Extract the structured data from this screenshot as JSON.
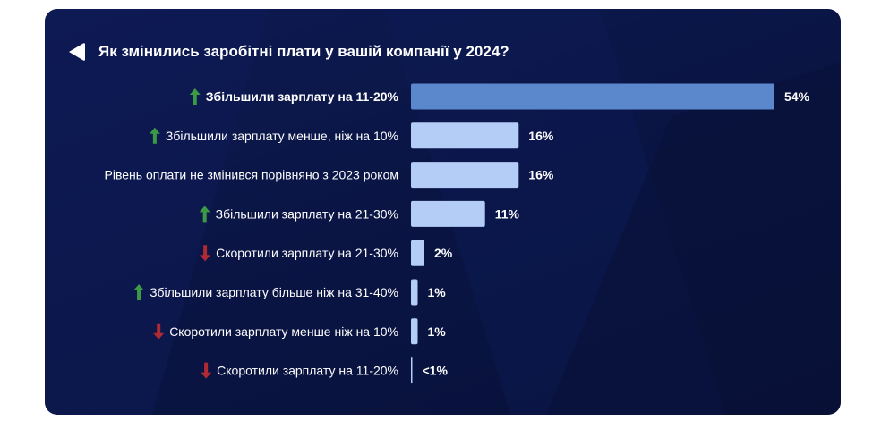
{
  "title": "Як змінились заробітні плати у вашій компанії у 2024?",
  "colors": {
    "card_bg": "#0b1648",
    "bar_highlight": "#5b87cc",
    "bar": "#b4cdf6",
    "arrow_up": "#3c9a45",
    "arrow_down": "#b02a33",
    "text": "#ffffff"
  },
  "chart_data": {
    "type": "bar",
    "orientation": "horizontal",
    "title": "Як змінились заробітні плати у вашій компанії у 2024?",
    "categories": [
      "Збільшили зарплату на 11-20%",
      "Збільшили зарплату менше, ніж на 10%",
      "Рівень оплати не змінився порівняно з 2023 роком",
      "Збільшили зарплату на 21-30%",
      "Скоротили зарплату на 21-30%",
      "Збільшили зарплату більше ніж на 31-40%",
      "Скоротили зарплату менше ніж на 10%",
      "Скоротили зарплату на 11-20%"
    ],
    "values": [
      54,
      16,
      16,
      11,
      2,
      1,
      1,
      0.2
    ],
    "value_labels": [
      "54%",
      "16%",
      "16%",
      "11%",
      "2%",
      "1%",
      "1%",
      "<1%"
    ],
    "arrows": [
      "up-arrow-icon",
      "up-arrow-icon",
      "",
      "up-arrow-icon",
      "down-arrow-icon",
      "up-arrow-icon",
      "down-arrow-icon",
      "down-arrow-icon"
    ],
    "highlight": [
      true,
      false,
      false,
      false,
      false,
      false,
      false,
      false
    ],
    "unit": "%",
    "grid": false,
    "legend": "none"
  }
}
